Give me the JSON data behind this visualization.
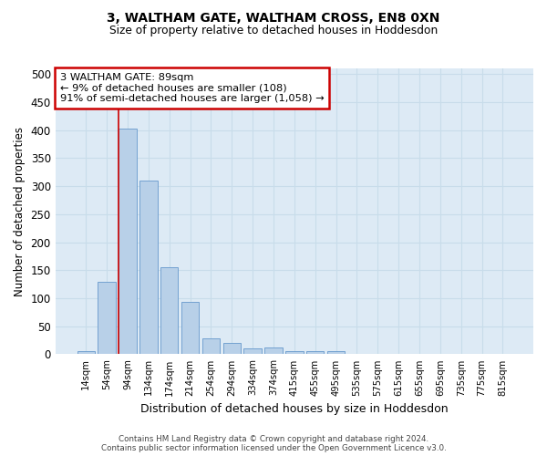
{
  "title1": "3, WALTHAM GATE, WALTHAM CROSS, EN8 0XN",
  "title2": "Size of property relative to detached houses in Hoddesdon",
  "xlabel": "Distribution of detached houses by size in Hoddesdon",
  "ylabel": "Number of detached properties",
  "categories": [
    "14sqm",
    "54sqm",
    "94sqm",
    "134sqm",
    "174sqm",
    "214sqm",
    "254sqm",
    "294sqm",
    "334sqm",
    "374sqm",
    "415sqm",
    "455sqm",
    "495sqm",
    "535sqm",
    "575sqm",
    "615sqm",
    "655sqm",
    "695sqm",
    "735sqm",
    "775sqm",
    "815sqm"
  ],
  "values": [
    5,
    130,
    403,
    310,
    155,
    93,
    28,
    20,
    10,
    12,
    5,
    6,
    6,
    1,
    0,
    0,
    1,
    0,
    0,
    1,
    1
  ],
  "bar_color": "#b8d0e8",
  "bar_edge_color": "#6699cc",
  "grid_color": "#c8dcea",
  "bg_color": "#ddeaf5",
  "vline_color": "#cc0000",
  "annotation_text": "3 WALTHAM GATE: 89sqm\n← 9% of detached houses are smaller (108)\n91% of semi-detached houses are larger (1,058) →",
  "annotation_box_color": "#ffffff",
  "annotation_box_edge": "#cc0000",
  "footer1": "Contains HM Land Registry data © Crown copyright and database right 2024.",
  "footer2": "Contains public sector information licensed under the Open Government Licence v3.0.",
  "ylim": [
    0,
    510
  ],
  "yticks": [
    0,
    50,
    100,
    150,
    200,
    250,
    300,
    350,
    400,
    450,
    500
  ],
  "vline_index": 2
}
